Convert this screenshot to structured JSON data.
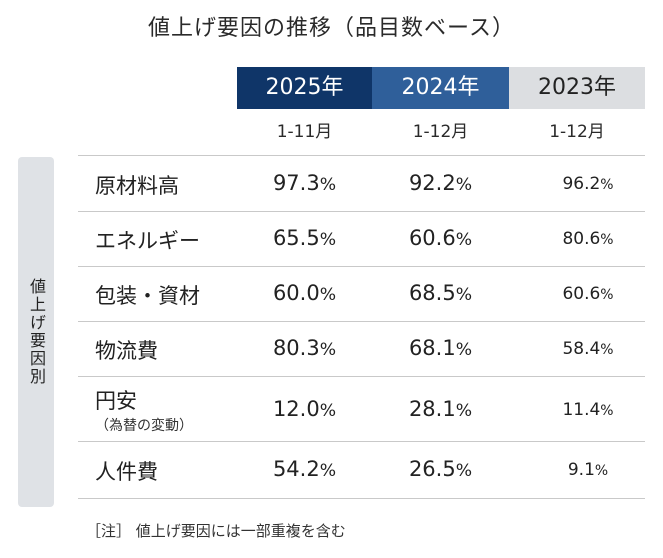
{
  "title": "値上げ要因の推移（品目数ベース）",
  "colors": {
    "year_2025_bg": "#0f3568",
    "year_2024_bg": "#2f5f9a",
    "year_2023_bg": "#dcdee1",
    "side_label_bg": "#dfe2e6",
    "rule": "#c9c9c9"
  },
  "columns": [
    {
      "year": "2025年",
      "period": "1-11月"
    },
    {
      "year": "2024年",
      "period": "1-12月"
    },
    {
      "year": "2023年",
      "period": "1-12月"
    }
  ],
  "side_label": "値上げ要因別",
  "rows": [
    {
      "label": "原材料高",
      "sub": "",
      "v1": "97.3",
      "v2": "92.2",
      "v3": "96.2"
    },
    {
      "label": "エネルギー",
      "sub": "",
      "v1": "65.5",
      "v2": "60.6",
      "v3": "80.6"
    },
    {
      "label": "包装・資材",
      "sub": "",
      "v1": "60.0",
      "v2": "68.5",
      "v3": "60.6"
    },
    {
      "label": "物流費",
      "sub": "",
      "v1": "80.3",
      "v2": "68.1",
      "v3": "58.4"
    },
    {
      "label": "円安",
      "sub": "（為替の変動）",
      "v1": "12.0",
      "v2": "28.1",
      "v3": "11.4"
    },
    {
      "label": "人件費",
      "sub": "",
      "v1": "54.2",
      "v2": "26.5",
      "v3": "9.1"
    }
  ],
  "percent_sign": "%",
  "note": "［注］ 値上げ要因には一部重複を含む"
}
